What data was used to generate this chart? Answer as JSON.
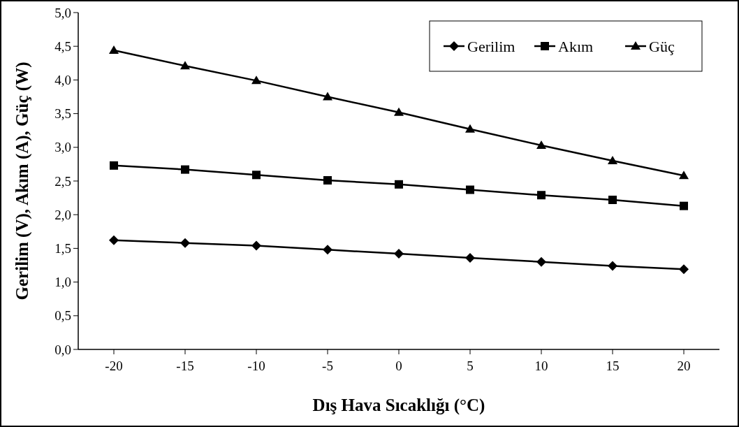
{
  "chart_data": {
    "type": "line",
    "xlabel": "Dış Hava Sıcaklığı (°C)",
    "ylabel": "Gerilim (V), Akım (A), Güç (W)",
    "x": [
      -20,
      -15,
      -10,
      -5,
      0,
      5,
      10,
      15,
      20
    ],
    "series": [
      {
        "name": "Gerilim",
        "color": "#000000",
        "marker": "diamond",
        "values": [
          1.62,
          1.58,
          1.54,
          1.48,
          1.42,
          1.36,
          1.3,
          1.24,
          1.19
        ]
      },
      {
        "name": "Akım",
        "color": "#000000",
        "marker": "square",
        "values": [
          2.73,
          2.67,
          2.59,
          2.51,
          2.45,
          2.37,
          2.29,
          2.22,
          2.13
        ]
      },
      {
        "name": "Güç",
        "color": "#000000",
        "marker": "triangle",
        "values": [
          4.44,
          4.21,
          3.99,
          3.75,
          3.52,
          3.27,
          3.03,
          2.8,
          2.58
        ]
      }
    ],
    "xlim": [
      -22.5,
      22.5
    ],
    "xticks": [
      -20,
      -15,
      -10,
      -5,
      0,
      5,
      10,
      15,
      20
    ],
    "ylim": [
      0,
      5
    ],
    "yticks": [
      {
        "value": 0,
        "label": "0,0"
      },
      {
        "value": 0.5,
        "label": "0,5"
      },
      {
        "value": 1,
        "label": "1,0"
      },
      {
        "value": 1.5,
        "label": "1,5"
      },
      {
        "value": 2,
        "label": "2,0"
      },
      {
        "value": 2.5,
        "label": "2,5"
      },
      {
        "value": 3,
        "label": "3,0"
      },
      {
        "value": 3.5,
        "label": "3,5"
      },
      {
        "value": 4,
        "label": "4,0"
      },
      {
        "value": 4.5,
        "label": "4,5"
      },
      {
        "value": 5,
        "label": "5,0"
      }
    ],
    "grid": false,
    "legend": "top right",
    "line_style": "solid"
  }
}
